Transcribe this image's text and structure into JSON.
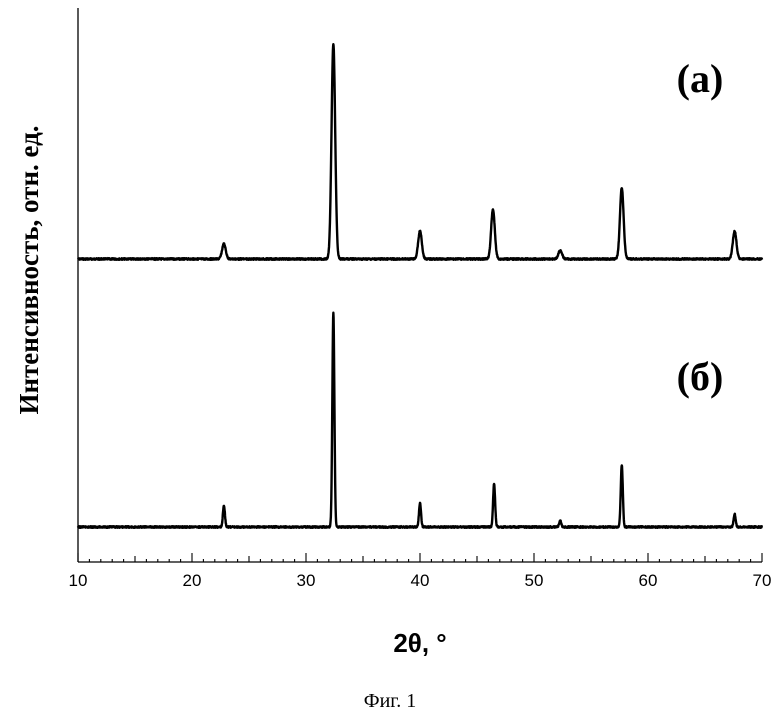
{
  "caption": "Фиг. 1",
  "chart_data": {
    "type": "line",
    "xlabel": "2θ, °",
    "ylabel": "Интенсивность, отн. ед.",
    "xlim": [
      10,
      70
    ],
    "xticks": [
      10,
      20,
      30,
      40,
      50,
      60,
      70
    ],
    "y_axis_values_shown": false,
    "line_color": "#000000",
    "series": [
      {
        "name": "(a)",
        "baseline": 0.0,
        "peaks": [
          {
            "x": 22.8,
            "height": 0.07
          },
          {
            "x": 32.4,
            "height": 1.0
          },
          {
            "x": 40.0,
            "height": 0.13
          },
          {
            "x": 46.4,
            "height": 0.23
          },
          {
            "x": 52.3,
            "height": 0.04
          },
          {
            "x": 57.7,
            "height": 0.33
          },
          {
            "x": 67.6,
            "height": 0.13
          }
        ]
      },
      {
        "name": "(б)",
        "baseline": 0.0,
        "peaks": [
          {
            "x": 22.8,
            "height": 0.1
          },
          {
            "x": 32.4,
            "height": 1.0
          },
          {
            "x": 40.0,
            "height": 0.11
          },
          {
            "x": 46.5,
            "height": 0.2
          },
          {
            "x": 52.3,
            "height": 0.03
          },
          {
            "x": 57.7,
            "height": 0.29
          },
          {
            "x": 67.6,
            "height": 0.06
          }
        ]
      }
    ]
  }
}
